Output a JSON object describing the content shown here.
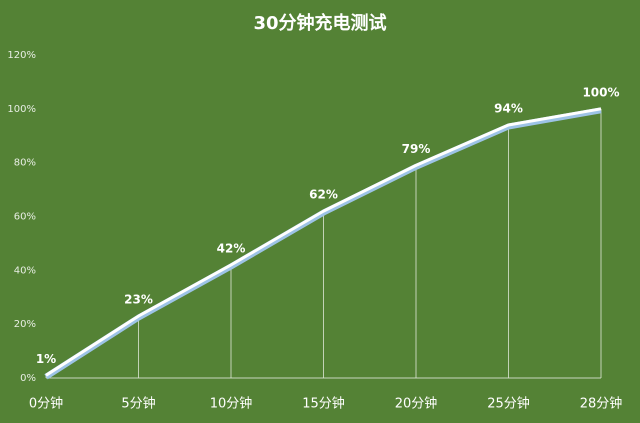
{
  "chart_data": {
    "type": "line",
    "title": "30分钟充电测试",
    "categories": [
      "0分钟",
      "5分钟",
      "10分钟",
      "15分钟",
      "20分钟",
      "25分钟",
      "28分钟"
    ],
    "values": [
      1,
      23,
      42,
      62,
      79,
      94,
      100
    ],
    "value_labels": [
      "1%",
      "23%",
      "42%",
      "62%",
      "79%",
      "94%",
      "100%"
    ],
    "color": "#ffffff",
    "ylim": [
      0,
      120
    ],
    "yticks": [
      {
        "value": 0,
        "label": "0%"
      },
      {
        "value": 20,
        "label": "20%"
      },
      {
        "value": 40,
        "label": "40%"
      },
      {
        "value": 60,
        "label": "60%"
      },
      {
        "value": 80,
        "label": "80%"
      },
      {
        "value": 100,
        "label": "100%"
      },
      {
        "value": 120,
        "label": "120%"
      }
    ],
    "drop_lines": true
  }
}
